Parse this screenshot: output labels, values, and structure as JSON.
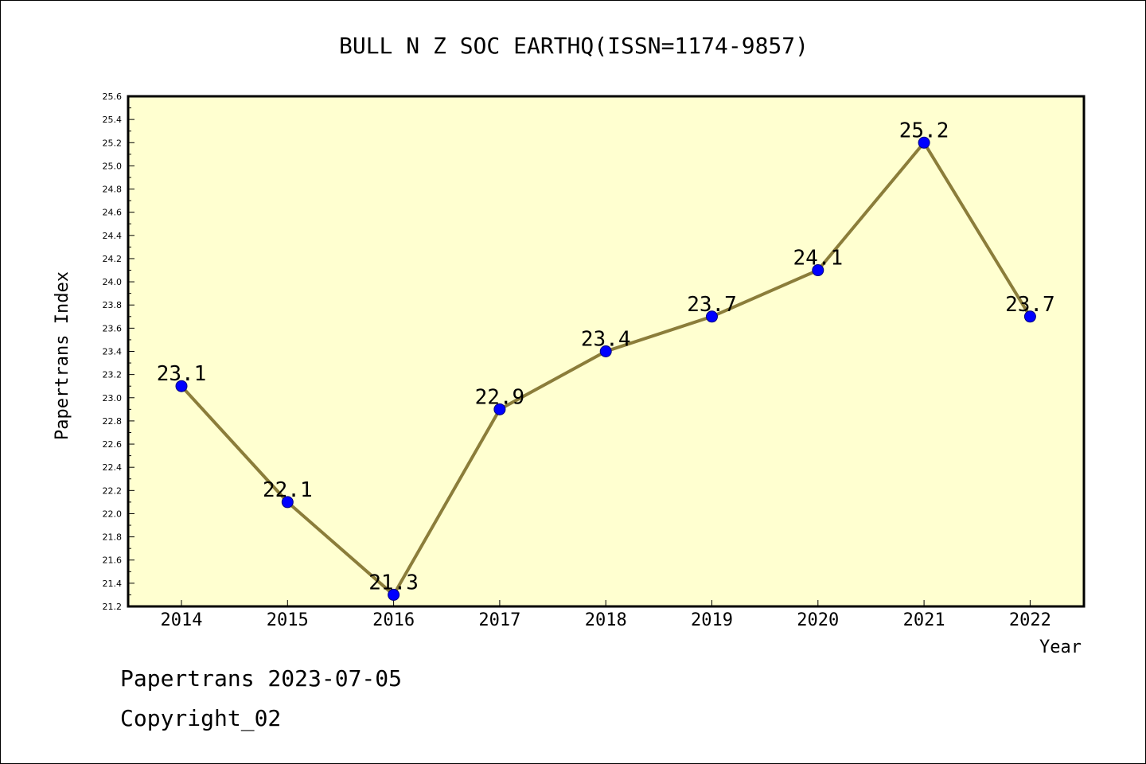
{
  "chart_data": {
    "type": "line",
    "title": "BULL N Z SOC EARTHQ(ISSN=1174-9857)",
    "xlabel": "Year",
    "ylabel": "Papertrans Index",
    "categories": [
      "2014",
      "2015",
      "2016",
      "2017",
      "2018",
      "2019",
      "2020",
      "2021",
      "2022"
    ],
    "series": [
      {
        "values": [
          23.1,
          22.1,
          21.3,
          22.9,
          23.4,
          23.7,
          24.1,
          25.2,
          23.7
        ],
        "data_labels": [
          "23.1",
          "22.1",
          "21.3",
          "22.9",
          "23.4",
          "23.7",
          "24.1",
          "25.2",
          "23.7"
        ]
      }
    ],
    "ylim": [
      21.2,
      25.6
    ],
    "yticks": [
      "21.2",
      "21.4",
      "21.6",
      "21.8",
      "22.0",
      "22.2",
      "22.4",
      "22.6",
      "22.8",
      "23.0",
      "23.2",
      "23.4",
      "23.6",
      "23.8",
      "24.0",
      "24.2",
      "24.4",
      "24.6",
      "24.8",
      "25.0",
      "25.2",
      "25.4",
      "25.6"
    ],
    "grid": false,
    "legend": "none"
  },
  "footer": {
    "date_text": "Papertrans 2023-07-05",
    "copyright_text": "Copyright_02"
  },
  "colors": {
    "plot_background": "#ffffd0",
    "line": "#8b7d3a",
    "marker": "#0000ff",
    "axis": "#000000"
  }
}
